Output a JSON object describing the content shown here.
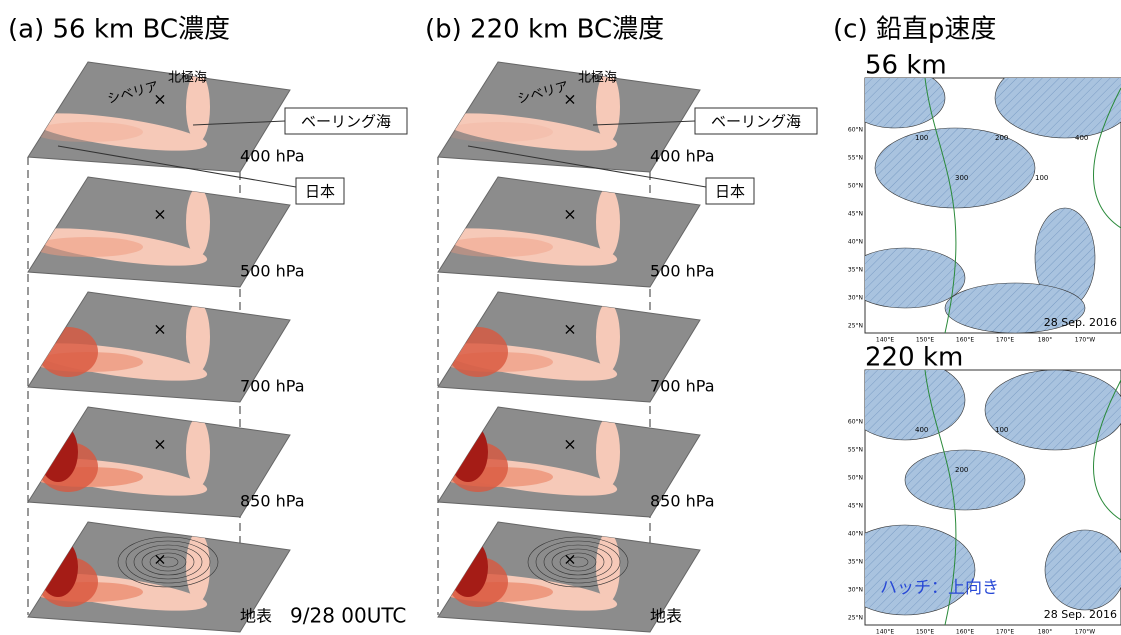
{
  "panels": [
    {
      "title": "(a) 56 km BC濃度",
      "layers": [
        "400 hPa",
        "500 hPa",
        "700 hPa",
        "850 hPa",
        "地表"
      ],
      "labels": {
        "arctic": "北極海",
        "siberia": "シベリア",
        "bering": "ベーリング海",
        "japan": "日本"
      }
    },
    {
      "title": "(b) 220 km BC濃度",
      "layers": [
        "400 hPa",
        "500 hPa",
        "700 hPa",
        "850 hPa",
        "地表"
      ],
      "labels": {
        "arctic": "北極海",
        "siberia": "シベリア",
        "bering": "ベーリング海",
        "japan": "日本"
      }
    }
  ],
  "time": "9/28 00UTC",
  "panel_c": {
    "title": "(c) 鉛直p速度",
    "lat_labels": [
      "60°N",
      "55°N",
      "50°N",
      "45°N",
      "40°N",
      "35°N",
      "30°N",
      "25°N"
    ],
    "lon_labels": [
      "140°E",
      "150°E",
      "160°E",
      "170°E",
      "180°",
      "170°W"
    ],
    "maps": [
      {
        "label": "56 km",
        "date": "28 Sep. 2016",
        "contour_labels": [
          "100",
          "300",
          "200",
          "100",
          "400"
        ]
      },
      {
        "label": "220 km",
        "date": "28 Sep. 2016",
        "contour_labels": [
          "400",
          "200",
          "100"
        ],
        "legend": "ハッチ：上向き"
      }
    ]
  }
}
